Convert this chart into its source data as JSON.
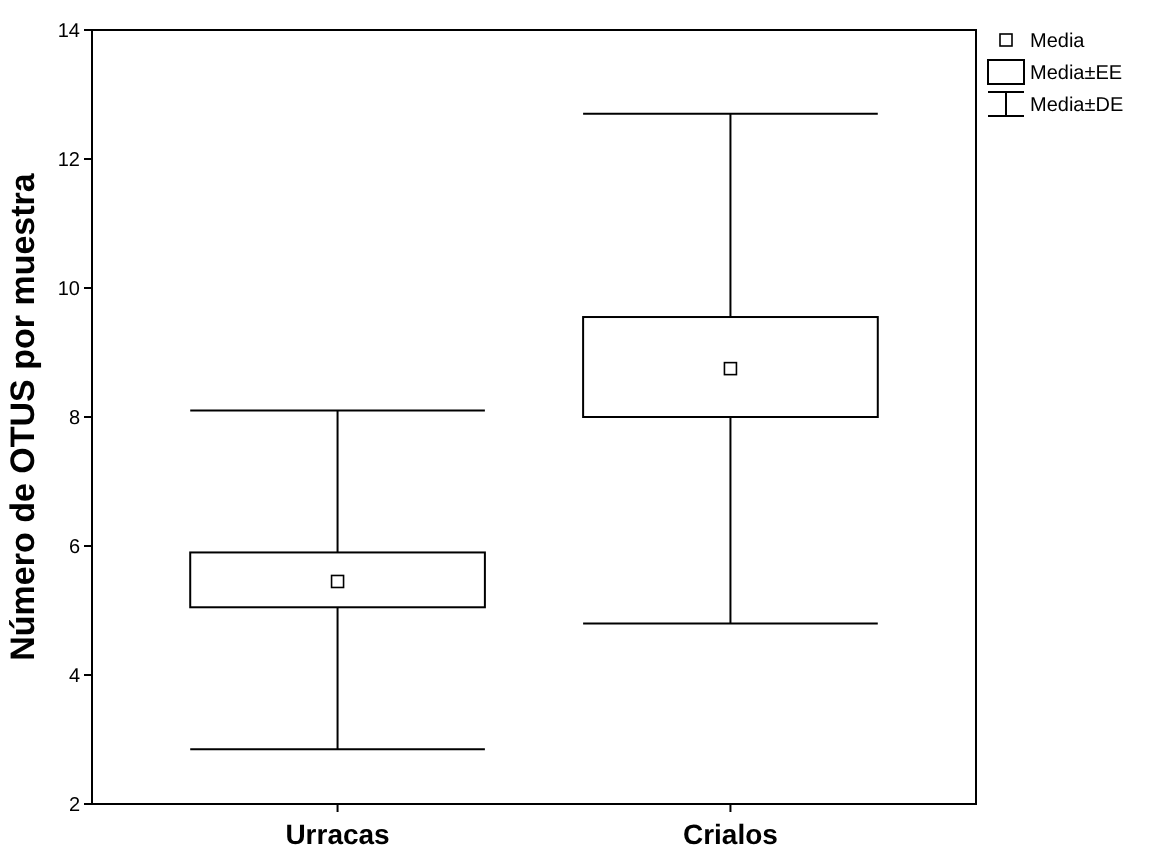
{
  "chart_data": {
    "type": "box",
    "ylabel": "Número de OTUS por muestra",
    "categories": [
      "Urracas",
      "Crialos"
    ],
    "boxes": [
      {
        "low": 2.85,
        "q1": 5.05,
        "q3": 5.9,
        "high": 8.1,
        "mean": 5.45
      },
      {
        "low": 4.8,
        "q1": 8.0,
        "q3": 9.55,
        "high": 12.7,
        "mean": 8.75
      }
    ],
    "ylim": [
      2,
      14
    ],
    "yticks": [
      2,
      4,
      6,
      8,
      10,
      12,
      14
    ],
    "grid": false,
    "marker": "square",
    "annotations": [
      "Media",
      "Media±EE",
      "Media±DE"
    ]
  }
}
